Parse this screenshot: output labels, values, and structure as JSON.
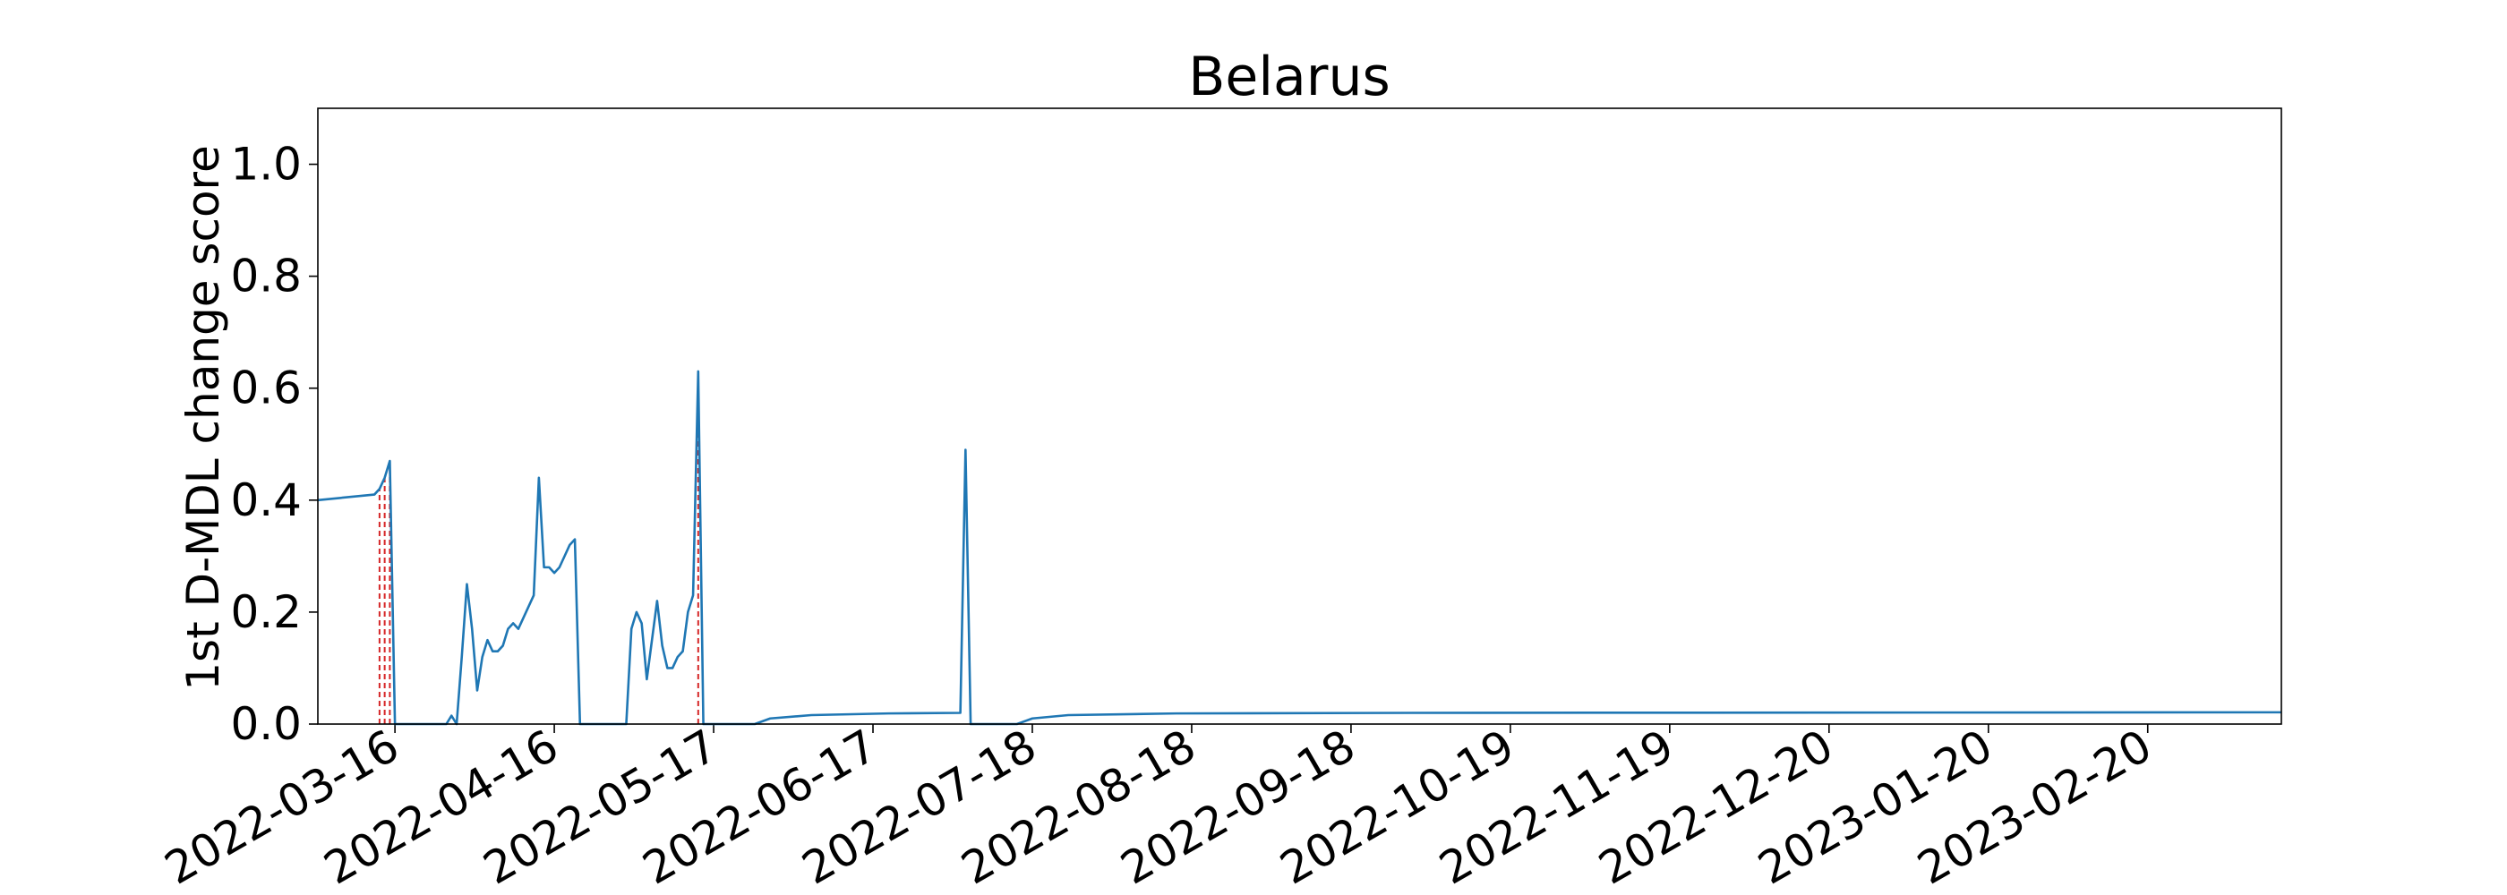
{
  "chart_data": {
    "type": "line",
    "title": "Belarus",
    "xlabel": "",
    "ylabel": "1st D-MDL change score",
    "x_axis_type": "date",
    "xlim": [
      "2022-03-01",
      "2023-03-18"
    ],
    "ylim": [
      0.0,
      1.1
    ],
    "yticks": [
      0.0,
      0.2,
      0.4,
      0.6,
      0.8,
      1.0
    ],
    "ytick_labels": [
      "0.0",
      "0.2",
      "0.4",
      "0.6",
      "0.8",
      "1.0"
    ],
    "xticks": [
      "2022-03-16",
      "2022-04-16",
      "2022-05-17",
      "2022-06-17",
      "2022-07-18",
      "2022-08-18",
      "2022-09-18",
      "2022-10-19",
      "2022-11-19",
      "2022-12-20",
      "2023-01-20",
      "2023-02-20"
    ],
    "grid": false,
    "legend": "none",
    "colors": {
      "line": "#1f77b4",
      "change_points": "#d62728",
      "axis": "#000000"
    },
    "series": [
      {
        "points": [
          [
            "2022-03-01",
            0.4
          ],
          [
            "2022-03-12",
            0.41
          ],
          [
            "2022-03-13",
            0.42
          ],
          [
            "2022-03-14",
            0.44
          ],
          [
            "2022-03-15",
            0.47
          ],
          [
            "2022-03-16",
            0.0
          ],
          [
            "2022-03-17",
            0.0
          ],
          [
            "2022-03-18",
            0.0
          ],
          [
            "2022-03-26",
            0.0
          ],
          [
            "2022-03-27",
            0.015
          ],
          [
            "2022-03-28",
            0.0
          ],
          [
            "2022-03-29",
            0.12
          ],
          [
            "2022-03-30",
            0.25
          ],
          [
            "2022-03-31",
            0.17
          ],
          [
            "2022-04-01",
            0.06
          ],
          [
            "2022-04-02",
            0.12
          ],
          [
            "2022-04-03",
            0.15
          ],
          [
            "2022-04-04",
            0.13
          ],
          [
            "2022-04-05",
            0.13
          ],
          [
            "2022-04-06",
            0.14
          ],
          [
            "2022-04-07",
            0.17
          ],
          [
            "2022-04-08",
            0.18
          ],
          [
            "2022-04-09",
            0.17
          ],
          [
            "2022-04-10",
            0.19
          ],
          [
            "2022-04-11",
            0.21
          ],
          [
            "2022-04-12",
            0.23
          ],
          [
            "2022-04-13",
            0.44
          ],
          [
            "2022-04-14",
            0.28
          ],
          [
            "2022-04-15",
            0.28
          ],
          [
            "2022-04-16",
            0.27
          ],
          [
            "2022-04-17",
            0.28
          ],
          [
            "2022-04-18",
            0.3
          ],
          [
            "2022-04-19",
            0.32
          ],
          [
            "2022-04-20",
            0.33
          ],
          [
            "2022-04-21",
            0.0
          ],
          [
            "2022-04-30",
            0.0
          ],
          [
            "2022-05-01",
            0.17
          ],
          [
            "2022-05-02",
            0.2
          ],
          [
            "2022-05-03",
            0.18
          ],
          [
            "2022-05-04",
            0.08
          ],
          [
            "2022-05-05",
            0.15
          ],
          [
            "2022-05-06",
            0.22
          ],
          [
            "2022-05-07",
            0.14
          ],
          [
            "2022-05-08",
            0.1
          ],
          [
            "2022-05-09",
            0.1
          ],
          [
            "2022-05-10",
            0.12
          ],
          [
            "2022-05-11",
            0.13
          ],
          [
            "2022-05-12",
            0.2
          ],
          [
            "2022-05-13",
            0.23
          ],
          [
            "2022-05-14",
            0.63
          ],
          [
            "2022-05-15",
            0.0
          ],
          [
            "2022-05-25",
            0.0
          ],
          [
            "2022-05-28",
            0.01
          ],
          [
            "2022-06-05",
            0.016
          ],
          [
            "2022-06-20",
            0.019
          ],
          [
            "2022-07-04",
            0.02
          ],
          [
            "2022-07-05",
            0.49
          ],
          [
            "2022-07-06",
            0.0
          ],
          [
            "2022-07-15",
            0.0
          ],
          [
            "2022-07-18",
            0.01
          ],
          [
            "2022-07-25",
            0.016
          ],
          [
            "2022-08-15",
            0.019
          ],
          [
            "2022-09-30",
            0.02
          ],
          [
            "2023-03-18",
            0.021
          ]
        ]
      }
    ],
    "change_points": [
      "2022-03-13",
      "2022-03-14",
      "2022-03-15",
      "2022-05-14"
    ]
  }
}
